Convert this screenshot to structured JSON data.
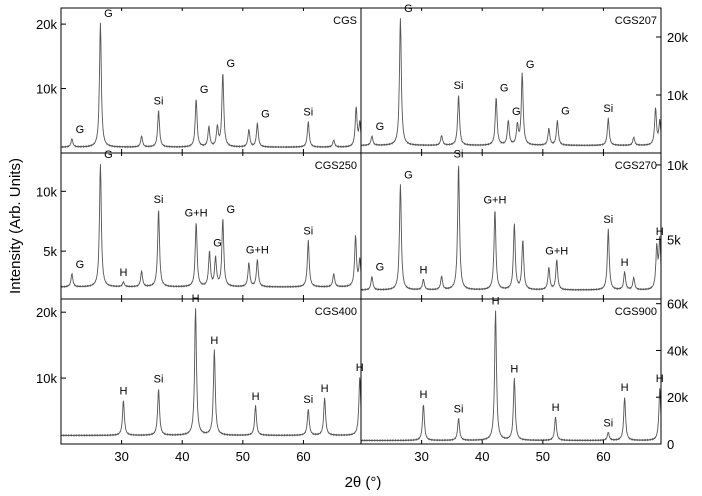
{
  "figure": {
    "ylabel": "Intensity (Arb. Units)",
    "xlabel": "2θ (°)",
    "x_ticks": [
      30,
      40,
      50,
      60
    ],
    "x_tick_labels": [
      "30",
      "40",
      "50",
      "60"
    ],
    "line_color": "#555555",
    "frame_color": "#000000"
  },
  "chart_data": [
    {
      "type": "line",
      "title": "CGS",
      "column": "left",
      "row": 0,
      "xlim": [
        20,
        69.5
      ],
      "ylim": [
        0,
        22500
      ],
      "axis_side": "left",
      "y_ticks": [
        10000,
        20000
      ],
      "y_tick_labels": [
        "10k",
        "20k"
      ],
      "baseline": 900,
      "peaks": [
        {
          "x": 21.8,
          "y": 2200,
          "label": "G"
        },
        {
          "x": 26.5,
          "y": 20200,
          "label": "G"
        },
        {
          "x": 33.3,
          "y": 2600
        },
        {
          "x": 36.1,
          "y": 6600,
          "label": "Si"
        },
        {
          "x": 42.3,
          "y": 8400,
          "label": "G"
        },
        {
          "x": 44.4,
          "y": 4000
        },
        {
          "x": 45.8,
          "y": 3900
        },
        {
          "x": 46.7,
          "y": 12400,
          "label": "G"
        },
        {
          "x": 51.0,
          "y": 3600
        },
        {
          "x": 52.4,
          "y": 4600,
          "label": "G"
        },
        {
          "x": 60.8,
          "y": 4900,
          "label": "Si"
        },
        {
          "x": 65.0,
          "y": 2000
        },
        {
          "x": 68.7,
          "y": 7000
        },
        {
          "x": 69.3,
          "y": 4500
        }
      ]
    },
    {
      "type": "line",
      "title": "CGS207",
      "column": "right",
      "row": 0,
      "xlim": [
        20,
        69.5
      ],
      "ylim": [
        0,
        25000
      ],
      "axis_side": "right",
      "y_ticks": [
        10000,
        20000
      ],
      "y_tick_labels": [
        "10k",
        "20k"
      ],
      "baseline": 1300,
      "peaks": [
        {
          "x": 21.8,
          "y": 2900,
          "label": "G"
        },
        {
          "x": 26.5,
          "y": 23300,
          "label": "G"
        },
        {
          "x": 33.3,
          "y": 3000
        },
        {
          "x": 36.1,
          "y": 10000,
          "label": "Si"
        },
        {
          "x": 42.3,
          "y": 9600,
          "label": "G"
        },
        {
          "x": 44.3,
          "y": 5500,
          "label": "G"
        },
        {
          "x": 45.8,
          "y": 4700
        },
        {
          "x": 46.6,
          "y": 13600,
          "label": "G"
        },
        {
          "x": 51.0,
          "y": 4200
        },
        {
          "x": 52.4,
          "y": 5600,
          "label": "G"
        },
        {
          "x": 60.8,
          "y": 6000,
          "label": "Si"
        },
        {
          "x": 65.0,
          "y": 2700
        },
        {
          "x": 68.6,
          "y": 7600
        },
        {
          "x": 69.3,
          "y": 5400
        }
      ]
    },
    {
      "type": "line",
      "title": "CGS250",
      "column": "left",
      "row": 1,
      "xlim": [
        20,
        69.5
      ],
      "ylim": [
        1000,
        13200
      ],
      "axis_side": "left",
      "y_ticks": [
        5000,
        10000
      ],
      "y_tick_labels": [
        "5k",
        "10k"
      ],
      "baseline": 2000,
      "peaks": [
        {
          "x": 21.8,
          "y": 3100,
          "label": "G"
        },
        {
          "x": 26.5,
          "y": 12300,
          "label": "G"
        },
        {
          "x": 30.3,
          "y": 2400,
          "label": "H"
        },
        {
          "x": 33.3,
          "y": 3300
        },
        {
          "x": 36.1,
          "y": 8500,
          "label": "Si"
        },
        {
          "x": 42.3,
          "y": 7400,
          "label": "G+H"
        },
        {
          "x": 44.5,
          "y": 4900,
          "label": "G"
        },
        {
          "x": 45.5,
          "y": 4400
        },
        {
          "x": 46.7,
          "y": 7700,
          "label": "G"
        },
        {
          "x": 51.0,
          "y": 4000
        },
        {
          "x": 52.4,
          "y": 4300,
          "label": "G+H"
        },
        {
          "x": 60.8,
          "y": 5900,
          "label": "Si"
        },
        {
          "x": 65.0,
          "y": 3100
        },
        {
          "x": 68.6,
          "y": 6200
        },
        {
          "x": 69.3,
          "y": 4200
        }
      ]
    },
    {
      "type": "line",
      "title": "CGS270",
      "column": "right",
      "row": 1,
      "xlim": [
        20,
        69.5
      ],
      "ylim": [
        1000,
        10800
      ],
      "axis_side": "right",
      "y_ticks": [
        5000,
        10000
      ],
      "y_tick_labels": [
        "5k",
        "10k"
      ],
      "baseline": 1600,
      "peaks": [
        {
          "x": 21.8,
          "y": 2500,
          "label": "G"
        },
        {
          "x": 26.5,
          "y": 8700,
          "label": "G"
        },
        {
          "x": 30.3,
          "y": 2300,
          "label": "H"
        },
        {
          "x": 33.3,
          "y": 2500
        },
        {
          "x": 36.1,
          "y": 10100,
          "label": "Si"
        },
        {
          "x": 42.1,
          "y": 7000,
          "label": "G+H"
        },
        {
          "x": 45.3,
          "y": 6000
        },
        {
          "x": 46.7,
          "y": 4900
        },
        {
          "x": 51.0,
          "y": 3100
        },
        {
          "x": 52.3,
          "y": 3600,
          "label": "G+H"
        },
        {
          "x": 60.8,
          "y": 5700,
          "label": "Si"
        },
        {
          "x": 63.5,
          "y": 2800,
          "label": "H"
        },
        {
          "x": 65.0,
          "y": 2400
        },
        {
          "x": 68.8,
          "y": 4400
        },
        {
          "x": 69.3,
          "y": 4900,
          "label": "H"
        }
      ]
    },
    {
      "type": "line",
      "title": "CGS400",
      "column": "left",
      "row": 2,
      "xlim": [
        20,
        69.5
      ],
      "ylim": [
        0,
        22000
      ],
      "axis_side": "left",
      "y_ticks": [
        10000,
        20000
      ],
      "y_tick_labels": [
        "10k",
        "20k"
      ],
      "baseline": 1300,
      "peaks": [
        {
          "x": 30.3,
          "y": 6600,
          "label": "H"
        },
        {
          "x": 36.1,
          "y": 8400,
          "label": "Si"
        },
        {
          "x": 42.2,
          "y": 20600,
          "label": "H"
        },
        {
          "x": 45.3,
          "y": 14300,
          "label": "H"
        },
        {
          "x": 52.1,
          "y": 5800,
          "label": "H"
        },
        {
          "x": 60.8,
          "y": 5300,
          "label": "Si"
        },
        {
          "x": 63.5,
          "y": 7000,
          "label": "H"
        },
        {
          "x": 69.3,
          "y": 10200,
          "label": "H"
        }
      ]
    },
    {
      "type": "line",
      "title": "CGS900",
      "column": "right",
      "row": 2,
      "xlim": [
        20,
        69.5
      ],
      "ylim": [
        0,
        62000
      ],
      "axis_side": "right",
      "y_ticks": [
        0,
        20000,
        40000,
        60000
      ],
      "y_tick_labels": [
        "0",
        "20k",
        "40k",
        "60k"
      ],
      "baseline": 1500,
      "peaks": [
        {
          "x": 30.3,
          "y": 17000,
          "label": "H"
        },
        {
          "x": 36.1,
          "y": 11000,
          "label": "Si"
        },
        {
          "x": 42.2,
          "y": 57000,
          "label": "H"
        },
        {
          "x": 45.3,
          "y": 28000,
          "label": "H"
        },
        {
          "x": 52.1,
          "y": 11500,
          "label": "H"
        },
        {
          "x": 60.8,
          "y": 5000,
          "label": "Si"
        },
        {
          "x": 63.5,
          "y": 20000,
          "label": "H"
        },
        {
          "x": 69.3,
          "y": 24000,
          "label": "H"
        }
      ]
    }
  ]
}
